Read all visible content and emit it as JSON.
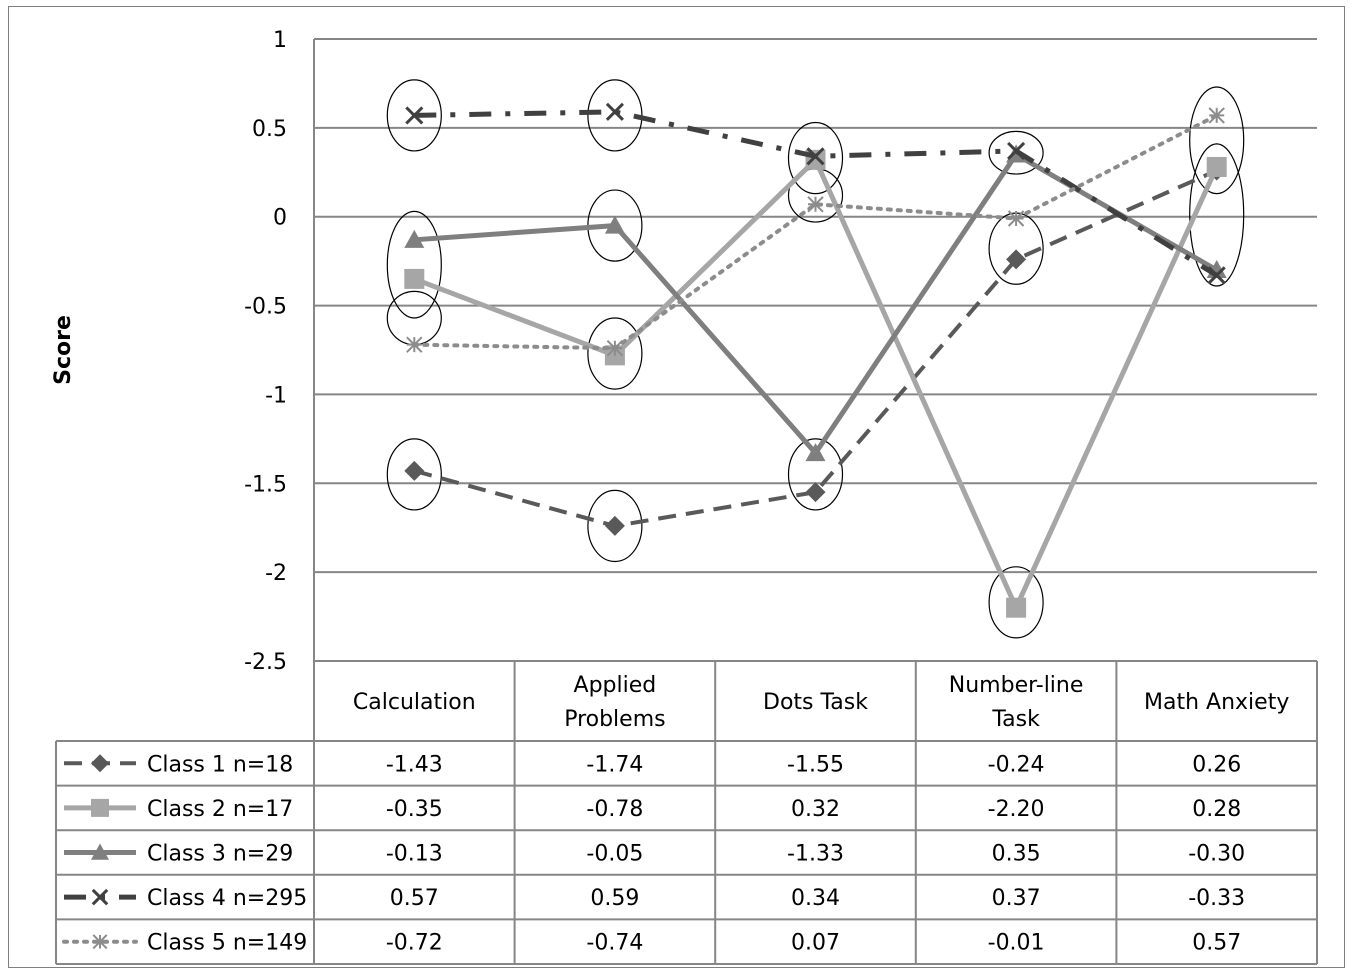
{
  "chart_data": {
    "type": "line",
    "title": "",
    "xlabel": "",
    "ylabel": "Score",
    "ylim": [
      -2.5,
      1
    ],
    "y_ticks": [
      "1",
      "0.5",
      "0",
      "-0.5",
      "-1",
      "-1.5",
      "-2",
      "-2.5"
    ],
    "y_tick_values": [
      1,
      0.5,
      0,
      -0.5,
      -1,
      -1.5,
      -2,
      -2.5
    ],
    "grid": true,
    "legend": "data-table-below",
    "categories": [
      [
        "Calculation"
      ],
      [
        "Applied",
        "Problems"
      ],
      [
        "Dots Task"
      ],
      [
        "Number-line",
        "Task"
      ],
      [
        "Math Anxiety"
      ]
    ],
    "series": [
      {
        "name": "Class 1  n=18",
        "color": "#595959",
        "dash": "dashed",
        "marker": "diamond",
        "values": [
          -1.43,
          -1.74,
          -1.55,
          -0.24,
          0.26
        ],
        "labels": [
          "-1.43",
          "-1.74",
          "-1.55",
          "-0.24",
          "0.26"
        ]
      },
      {
        "name": "Class 2 n=17",
        "color": "#a6a6a6",
        "dash": "solid",
        "marker": "square",
        "values": [
          -0.35,
          -0.78,
          0.32,
          -2.2,
          0.28
        ],
        "labels": [
          "-0.35",
          "-0.78",
          "0.32",
          "-2.20",
          "0.28"
        ]
      },
      {
        "name": "Class 3 n=29",
        "color": "#7f7f7f",
        "dash": "solid",
        "marker": "triangle",
        "values": [
          -0.13,
          -0.05,
          -1.33,
          0.35,
          -0.3
        ],
        "labels": [
          "-0.13",
          "-0.05",
          "-1.33",
          "0.35",
          "-0.30"
        ]
      },
      {
        "name": "Class 4 n=295",
        "color": "#404040",
        "dash": "dashdot",
        "marker": "x",
        "values": [
          0.57,
          0.59,
          0.34,
          0.37,
          -0.33
        ],
        "labels": [
          "0.57",
          "0.59",
          "0.34",
          "0.37",
          "-0.33"
        ]
      },
      {
        "name": "Class 5 n=149",
        "color": "#8c8c8c",
        "dash": "dotted",
        "marker": "star",
        "values": [
          -0.72,
          -0.74,
          0.07,
          -0.01,
          0.57
        ],
        "labels": [
          "-0.72",
          "-0.74",
          "0.07",
          "-0.01",
          "0.57"
        ]
      }
    ],
    "highlight_ellipses": [
      {
        "category": 0,
        "center": 0.57,
        "halfheight": 0.2
      },
      {
        "category": 0,
        "center": -0.27,
        "halfheight": 0.3
      },
      {
        "category": 0,
        "center": -0.57,
        "halfheight": 0.15
      },
      {
        "category": 0,
        "center": -1.45,
        "halfheight": 0.2
      },
      {
        "category": 1,
        "center": 0.57,
        "halfheight": 0.2
      },
      {
        "category": 1,
        "center": -0.05,
        "halfheight": 0.2
      },
      {
        "category": 1,
        "center": -0.77,
        "halfheight": 0.2
      },
      {
        "category": 1,
        "center": -1.74,
        "halfheight": 0.2
      },
      {
        "category": 2,
        "center": 0.33,
        "halfheight": 0.2
      },
      {
        "category": 2,
        "center": 0.12,
        "halfheight": 0.15
      },
      {
        "category": 2,
        "center": -1.45,
        "halfheight": 0.2
      },
      {
        "category": 3,
        "center": 0.36,
        "halfheight": 0.12
      },
      {
        "category": 3,
        "center": -0.18,
        "halfheight": 0.2
      },
      {
        "category": 3,
        "center": -2.17,
        "halfheight": 0.2
      },
      {
        "category": 4,
        "center": 0.43,
        "halfheight": 0.3
      },
      {
        "category": 4,
        "center": 0.01,
        "halfheight": 0.4
      }
    ]
  }
}
